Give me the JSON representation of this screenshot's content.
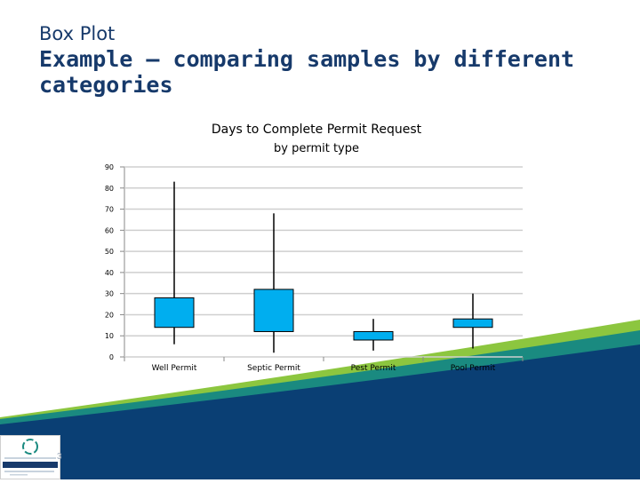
{
  "slide": {
    "title_small": "Box Plot",
    "title_large": "Example – comparing samples by different categories",
    "slide_number": "3",
    "logo": {
      "text_lines": [
        "Kalamazoo County Human Services",
        "Health Department",
        "Promote. Improve. Protect Community Health"
      ]
    }
  },
  "colors": {
    "title": "#173a6b",
    "box_fill": "#00aeef",
    "whisker": "#000000",
    "wave_dark": "#0a3f74",
    "wave_teal": "#1a8a80",
    "wave_green": "#8cc63f"
  },
  "chart_data": {
    "type": "box",
    "title": "Days to Complete Permit Request",
    "subtitle": "by permit type",
    "xlabel": "",
    "ylabel": "",
    "ylim": [
      0,
      90
    ],
    "yticks": [
      0,
      10,
      20,
      30,
      40,
      50,
      60,
      70,
      80,
      90
    ],
    "grid": false,
    "categories": [
      "Well Permit",
      "Septic Permit",
      "Pest Permit",
      "Pool Permit"
    ],
    "boxes": [
      {
        "category": "Well Permit",
        "min": 6,
        "q1": 14,
        "q3": 28,
        "max": 83
      },
      {
        "category": "Septic Permit",
        "min": 2,
        "q1": 12,
        "q3": 32,
        "max": 68
      },
      {
        "category": "Pest Permit",
        "min": 3,
        "q1": 8,
        "q3": 12,
        "max": 18
      },
      {
        "category": "Pool Permit",
        "min": 4,
        "q1": 14,
        "q3": 18,
        "max": 30
      }
    ]
  }
}
